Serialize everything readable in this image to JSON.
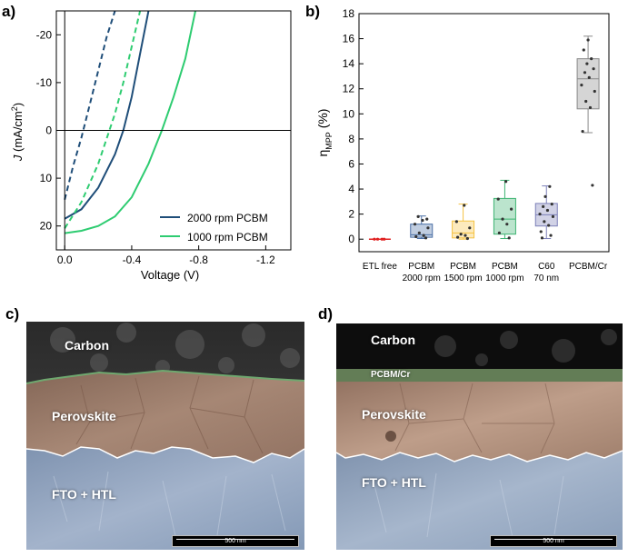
{
  "panels": {
    "a": "a)",
    "b": "b)",
    "c": "c)",
    "d": "d)"
  },
  "chart_data": [
    {
      "type": "line",
      "xlabel": "Voltage (V)",
      "ylabel_main": "J",
      "ylabel_unit": " (mA/cm",
      "ylabel_sup": "2",
      "ylabel_close": ")",
      "xlim": [
        0.05,
        -1.35
      ],
      "ylim": [
        25,
        -25
      ],
      "xticks": [
        0.0,
        -0.4,
        -0.8,
        -1.2
      ],
      "xtick_labels": [
        "0.0",
        "-0.4",
        "-0.8",
        "-1.2"
      ],
      "yticks": [
        -20,
        -10,
        0,
        10,
        20
      ],
      "ytick_labels": [
        "-20",
        "-10",
        "0",
        "10",
        "20"
      ],
      "zero_line": 0,
      "legend_position": "bottom-right",
      "colors": {
        "2000 rpm PCBM": "#1f4e79",
        "1000 rpm PCBM": "#2ecc71"
      },
      "series": [
        {
          "name": "2000 rpm PCBM",
          "sweep": "solid",
          "color": "#1f4e79",
          "x": [
            0.0,
            -0.1,
            -0.2,
            -0.3,
            -0.35,
            -0.4,
            -0.45,
            -0.5
          ],
          "y": [
            18.5,
            16.5,
            12.0,
            5.0,
            0.0,
            -7.0,
            -16.0,
            -25.0
          ]
        },
        {
          "name": "2000 rpm PCBM",
          "sweep": "dashed",
          "color": "#1f4e79",
          "x": [
            0.0,
            -0.05,
            -0.1,
            -0.15,
            -0.2,
            -0.25,
            -0.3
          ],
          "y": [
            14.5,
            7.5,
            1.5,
            -5.5,
            -12.5,
            -19.5,
            -25.0
          ]
        },
        {
          "name": "1000 rpm PCBM",
          "sweep": "solid",
          "color": "#2ecc71",
          "x": [
            0.0,
            -0.1,
            -0.2,
            -0.3,
            -0.4,
            -0.5,
            -0.58,
            -0.65,
            -0.72,
            -0.78
          ],
          "y": [
            21.5,
            21.0,
            20.0,
            18.0,
            14.0,
            7.0,
            0.0,
            -7.0,
            -15.0,
            -25.0
          ]
        },
        {
          "name": "1000 rpm PCBM",
          "sweep": "dashed",
          "color": "#2ecc71",
          "x": [
            0.0,
            -0.1,
            -0.2,
            -0.3,
            -0.35,
            -0.4,
            -0.45
          ],
          "y": [
            20.5,
            15.0,
            7.0,
            -3.5,
            -10.0,
            -17.5,
            -25.0
          ]
        }
      ],
      "legend": [
        "2000 rpm PCBM",
        "1000 rpm PCBM"
      ]
    },
    {
      "type": "box",
      "ylabel_symbol": "η",
      "ylabel_sub": "MPP",
      "ylabel_unit": " (%)",
      "ylim": [
        -1,
        18
      ],
      "yticks": [
        0,
        2,
        4,
        6,
        8,
        10,
        12,
        14,
        16,
        18
      ],
      "ytick_labels": [
        "0",
        "2",
        "4",
        "6",
        "8",
        "10",
        "12",
        "14",
        "16",
        "18"
      ],
      "categories": [
        [
          "ETL free"
        ],
        [
          "PCBM",
          "2000 rpm"
        ],
        [
          "PCBM",
          "1500 rpm"
        ],
        [
          "PCBM",
          "1000 rpm"
        ],
        [
          "C60",
          "70 nm"
        ],
        [
          "PCBM/Cr"
        ]
      ],
      "colors": [
        "#e02020",
        "#4a6fa5",
        "#f5c242",
        "#3cb371",
        "#7b7fb8",
        "#888888"
      ],
      "boxes": [
        {
          "q1": 0.0,
          "median": 0.0,
          "q3": 0.0,
          "whisker_low": 0.0,
          "whisker_high": 0.0,
          "points": [
            0.0,
            0.0,
            0.0,
            0.0
          ]
        },
        {
          "q1": 0.15,
          "median": 0.35,
          "q3": 1.2,
          "whisker_low": 0.05,
          "whisker_high": 1.85,
          "points": [
            0.1,
            0.2,
            0.3,
            0.5,
            0.9,
            1.2,
            1.5,
            1.8,
            1.6
          ]
        },
        {
          "q1": 0.1,
          "median": 0.5,
          "q3": 1.45,
          "whisker_low": 0.0,
          "whisker_high": 2.8,
          "points": [
            0.05,
            0.15,
            0.3,
            0.4,
            0.9,
            1.4,
            2.7
          ]
        },
        {
          "q1": 0.4,
          "median": 1.6,
          "q3": 3.25,
          "whisker_low": 0.05,
          "whisker_high": 4.7,
          "points": [
            0.1,
            0.5,
            1.2,
            1.6,
            2.4,
            3.2,
            4.6
          ]
        },
        {
          "q1": 1.05,
          "median": 1.95,
          "q3": 2.85,
          "whisker_low": 0.05,
          "whisker_high": 4.25,
          "points": [
            0.3,
            0.6,
            1.1,
            1.4,
            1.8,
            2.0,
            2.3,
            2.6,
            2.8,
            3.4,
            4.2,
            0.1
          ]
        },
        {
          "q1": 10.4,
          "median": 12.8,
          "q3": 14.4,
          "whisker_low": 8.5,
          "whisker_high": 16.2,
          "points": [
            4.3,
            8.6,
            10.5,
            11.0,
            11.8,
            12.3,
            12.9,
            13.3,
            13.6,
            14.0,
            14.4,
            15.1,
            15.9
          ]
        }
      ]
    }
  ],
  "sem_c": {
    "labels": [
      "Carbon",
      "Perovskite",
      "FTO + HTL"
    ],
    "scalebar": "500 nm"
  },
  "sem_d": {
    "labels": [
      "Carbon",
      "PCBM/Cr",
      "Perovskite",
      "FTO + HTL"
    ],
    "scalebar": "500 nm"
  }
}
